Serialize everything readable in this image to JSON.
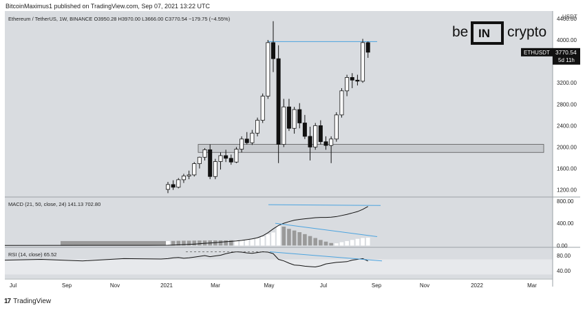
{
  "header": {
    "published": "BitcoinMaximus1 published on TradingView.com, Sep 07, 2021 13:22 UTC"
  },
  "symbol": {
    "name": "Ethereum / TetherUS, 1W, BINANCE",
    "open_label": "O",
    "open": "3950.28",
    "high_label": "H",
    "high": "3970.00",
    "low_label": "L",
    "low": "3666.00",
    "close_label": "C",
    "close": "3770.54",
    "change": "−179.75 (−4.55%)",
    "ticker": "ETHUSDT",
    "last_price": "3770.54",
    "countdown": "5d 11h",
    "currency": "USDT"
  },
  "branding": {
    "left": "be",
    "mid": "IN",
    "right": "crypto"
  },
  "footer": {
    "logo": "17",
    "text": "TradingView"
  },
  "colors": {
    "background": "#d9dce0",
    "up_body": "#ffffff",
    "down_body": "#111111",
    "wick": "#111111",
    "resistance": "#4aa3df",
    "zone_fill": "#c7cace",
    "zone_stroke": "#555555",
    "macd_line": "#111111",
    "hist_up": "#ffffff",
    "hist_down": "#9a9a9a",
    "rsi_line": "#111111",
    "rsi_band": "#e7e9ec"
  },
  "chart_data": [
    {
      "type": "candlestick",
      "title": "",
      "y_ticks": [
        1200,
        1600,
        2000,
        2400,
        2800,
        3200,
        4000,
        4400
      ],
      "ylim": [
        1080,
        4540
      ],
      "x_ticks": [
        "Jul",
        "Sep",
        "Nov",
        "2021",
        "Mar",
        "May",
        "Jul",
        "Sep",
        "Nov",
        "2022",
        "Mar"
      ],
      "resistance_level": 3970,
      "support_zone": [
        1900,
        2050
      ],
      "candles": [
        {
          "o": 1210,
          "h": 1350,
          "l": 1140,
          "c": 1300
        },
        {
          "o": 1300,
          "h": 1380,
          "l": 1200,
          "c": 1250
        },
        {
          "o": 1250,
          "h": 1420,
          "l": 1230,
          "c": 1390
        },
        {
          "o": 1390,
          "h": 1500,
          "l": 1330,
          "c": 1460
        },
        {
          "o": 1460,
          "h": 1560,
          "l": 1400,
          "c": 1480
        },
        {
          "o": 1480,
          "h": 1720,
          "l": 1450,
          "c": 1690
        },
        {
          "o": 1690,
          "h": 1820,
          "l": 1600,
          "c": 1810
        },
        {
          "o": 1810,
          "h": 1980,
          "l": 1750,
          "c": 1950
        },
        {
          "o": 1950,
          "h": 2050,
          "l": 1400,
          "c": 1450
        },
        {
          "o": 1450,
          "h": 1780,
          "l": 1400,
          "c": 1730
        },
        {
          "o": 1730,
          "h": 1900,
          "l": 1580,
          "c": 1840
        },
        {
          "o": 1840,
          "h": 1950,
          "l": 1720,
          "c": 1790
        },
        {
          "o": 1790,
          "h": 1860,
          "l": 1670,
          "c": 1720
        },
        {
          "o": 1720,
          "h": 2000,
          "l": 1700,
          "c": 1960
        },
        {
          "o": 1960,
          "h": 2200,
          "l": 1900,
          "c": 2150
        },
        {
          "o": 2150,
          "h": 2280,
          "l": 2050,
          "c": 2080
        },
        {
          "o": 2080,
          "h": 2320,
          "l": 2040,
          "c": 2260
        },
        {
          "o": 2260,
          "h": 2550,
          "l": 2200,
          "c": 2500
        },
        {
          "o": 2500,
          "h": 3000,
          "l": 2450,
          "c": 2950
        },
        {
          "o": 2950,
          "h": 4000,
          "l": 2900,
          "c": 3950
        },
        {
          "o": 3950,
          "h": 4350,
          "l": 3400,
          "c": 3650
        },
        {
          "o": 3650,
          "h": 3900,
          "l": 1700,
          "c": 2050
        },
        {
          "o": 2050,
          "h": 2900,
          "l": 2000,
          "c": 2750
        },
        {
          "o": 2750,
          "h": 2900,
          "l": 2300,
          "c": 2350
        },
        {
          "o": 2350,
          "h": 2750,
          "l": 2250,
          "c": 2700
        },
        {
          "o": 2700,
          "h": 2820,
          "l": 2350,
          "c": 2450
        },
        {
          "o": 2450,
          "h": 2600,
          "l": 2150,
          "c": 2200
        },
        {
          "o": 2200,
          "h": 2380,
          "l": 1750,
          "c": 2000
        },
        {
          "o": 2000,
          "h": 2450,
          "l": 1950,
          "c": 2400
        },
        {
          "o": 2400,
          "h": 2500,
          "l": 2050,
          "c": 2100
        },
        {
          "o": 2100,
          "h": 2200,
          "l": 1950,
          "c": 2030
        },
        {
          "o": 2030,
          "h": 2200,
          "l": 1700,
          "c": 2150
        },
        {
          "o": 2150,
          "h": 2650,
          "l": 2100,
          "c": 2600
        },
        {
          "o": 2600,
          "h": 3100,
          "l": 2550,
          "c": 3050
        },
        {
          "o": 3050,
          "h": 3350,
          "l": 2950,
          "c": 3300
        },
        {
          "o": 3300,
          "h": 3380,
          "l": 3100,
          "c": 3250
        },
        {
          "o": 3250,
          "h": 3350,
          "l": 3150,
          "c": 3230
        },
        {
          "o": 3230,
          "h": 4020,
          "l": 3200,
          "c": 3950
        },
        {
          "o": 3950,
          "h": 3970,
          "l": 3666,
          "c": 3770.54
        }
      ]
    },
    {
      "type": "line+bar",
      "title": "MACD (21, 50, close, 24) 141.13 702.80",
      "indicator": "MACD",
      "params": "21, 50, close, 24",
      "hist_value": "141.13",
      "macd_value": "702.80",
      "y_ticks": [
        0,
        400,
        800
      ],
      "ylim": [
        -20,
        860
      ],
      "macd": [
        5,
        8,
        12,
        16,
        20,
        25,
        32,
        40,
        45,
        52,
        60,
        68,
        75,
        82,
        92,
        105,
        120,
        140,
        175,
        230,
        300,
        360,
        400,
        430,
        455,
        470,
        480,
        490,
        500,
        505,
        505,
        510,
        520,
        540,
        560,
        585,
        610,
        650,
        702.8
      ],
      "histogram": [
        80,
        82,
        84,
        86,
        86,
        88,
        90,
        90,
        92,
        92,
        92,
        92,
        94,
        96,
        100,
        106,
        115,
        130,
        160,
        200,
        235,
        360,
        340,
        300,
        270,
        240,
        205,
        170,
        135,
        100,
        70,
        45,
        40,
        60,
        80,
        100,
        120,
        135,
        141.13
      ],
      "histogram_up": [
        true,
        false,
        false,
        false,
        false,
        false,
        false,
        false,
        false,
        false,
        false,
        false,
        false,
        true,
        true,
        true,
        true,
        true,
        true,
        true,
        true,
        true,
        false,
        false,
        false,
        false,
        false,
        false,
        false,
        false,
        false,
        false,
        true,
        true,
        true,
        true,
        true,
        true,
        true
      ]
    },
    {
      "type": "line",
      "title": "RSI (14, close) 65.52",
      "indicator": "RSI",
      "params": "14, close",
      "rsi_value": "65.52",
      "y_ticks": [
        40,
        80
      ],
      "ylim": [
        20,
        100
      ],
      "band": [
        30,
        70
      ],
      "rsi": [
        72,
        74,
        75,
        73,
        74,
        76,
        78,
        80,
        77,
        79,
        81,
        85,
        88,
        90,
        89,
        87,
        86,
        88,
        90,
        89,
        85,
        70,
        66,
        60,
        55,
        54,
        52,
        51,
        50,
        53,
        58,
        60,
        62,
        63,
        64,
        68,
        70,
        72,
        65.52
      ]
    }
  ]
}
